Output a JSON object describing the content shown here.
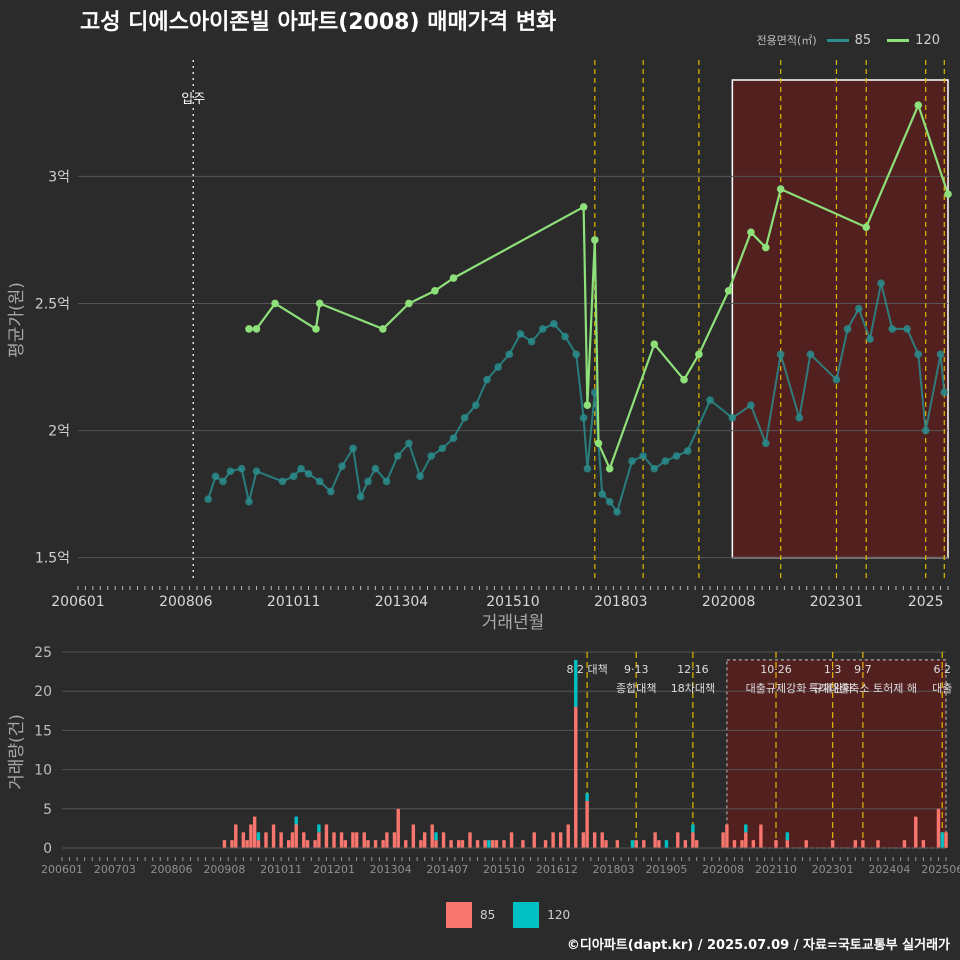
{
  "title": "고성 디에스아이존빌 아파트(2008) 매매가격 변화",
  "caption": "©디아파트(dapt.kr) / 2025.07.09 / 자료=국토교통부 실거래가",
  "legend": {
    "title": "전용면적(㎡)",
    "items": [
      {
        "label": "85",
        "color": "#2a8c8c",
        "bar_color": "#00c0c4"
      },
      {
        "label": "120",
        "color": "#8ee07a",
        "bar_color": "#f8766d"
      }
    ]
  },
  "colors": {
    "background": "#2b2b2b",
    "grid": "#555555",
    "policy_line": "#e0b800",
    "highlight_fill": "#5a1e1e",
    "highlight_border": "#ffffff",
    "bar_85": "#00c0c4",
    "bar_120": "#f8766d"
  },
  "chart_data": [
    {
      "type": "line",
      "title": "고성 디에스아이존빌 아파트(2008) 매매가격 변화",
      "xlabel": "거래년월",
      "ylabel": "평균가(원)",
      "x_unit": "yyyymm",
      "xlim": [
        "2006-01",
        "2025-07"
      ],
      "ylim": [
        1.42,
        3.45
      ],
      "x_ticks": [
        "200601",
        "200806",
        "201011",
        "201304",
        "201510",
        "201803",
        "202008",
        "202301",
        "2025"
      ],
      "y_ticks": [
        {
          "value": 1.5,
          "label": "1.5억"
        },
        {
          "value": 2.0,
          "label": "2억"
        },
        {
          "value": 2.5,
          "label": "2.5억"
        },
        {
          "value": 3.0,
          "label": "3억"
        }
      ],
      "grid": true,
      "annotations": [
        {
          "x": "2008-08",
          "label": "입주",
          "style": "dotted"
        }
      ],
      "policy_lines": [
        "2017-08",
        "2018-09",
        "2019-12",
        "2021-10",
        "2023-01",
        "2023-09",
        "2025-01",
        "2025-06"
      ],
      "highlight_range": [
        "2020-09",
        "2025-07"
      ],
      "series": [
        {
          "name": "120",
          "points": [
            [
              "2009-11",
              2.4
            ],
            [
              "2010-01",
              2.4
            ],
            [
              "2010-06",
              2.5
            ],
            [
              "2011-05",
              2.4
            ],
            [
              "2011-06",
              2.5
            ],
            [
              "2012-11",
              2.4
            ],
            [
              "2013-06",
              2.5
            ],
            [
              "2014-01",
              2.55
            ],
            [
              "2014-06",
              2.6
            ],
            [
              "2017-05",
              2.88
            ],
            [
              "2017-06",
              2.1
            ],
            [
              "2017-08",
              2.75
            ],
            [
              "2017-09",
              1.95
            ],
            [
              "2017-12",
              1.85
            ],
            [
              "2018-12",
              2.34
            ],
            [
              "2019-08",
              2.2
            ],
            [
              "2019-12",
              2.3
            ],
            [
              "2020-08",
              2.55
            ],
            [
              "2021-02",
              2.78
            ],
            [
              "2021-06",
              2.72
            ],
            [
              "2021-10",
              2.95
            ],
            [
              "2023-09",
              2.8
            ],
            [
              "2024-11",
              3.28
            ],
            [
              "2025-07",
              2.93
            ]
          ]
        },
        {
          "name": "85",
          "points": [
            [
              "2008-12",
              1.73
            ],
            [
              "2009-02",
              1.82
            ],
            [
              "2009-04",
              1.8
            ],
            [
              "2009-06",
              1.84
            ],
            [
              "2009-09",
              1.85
            ],
            [
              "2009-11",
              1.72
            ],
            [
              "2010-01",
              1.84
            ],
            [
              "2010-08",
              1.8
            ],
            [
              "2010-11",
              1.82
            ],
            [
              "2011-01",
              1.85
            ],
            [
              "2011-03",
              1.83
            ],
            [
              "2011-06",
              1.8
            ],
            [
              "2011-09",
              1.76
            ],
            [
              "2011-12",
              1.86
            ],
            [
              "2012-03",
              1.93
            ],
            [
              "2012-05",
              1.74
            ],
            [
              "2012-07",
              1.8
            ],
            [
              "2012-09",
              1.85
            ],
            [
              "2012-12",
              1.8
            ],
            [
              "2013-03",
              1.9
            ],
            [
              "2013-06",
              1.95
            ],
            [
              "2013-09",
              1.82
            ],
            [
              "2013-12",
              1.9
            ],
            [
              "2014-03",
              1.93
            ],
            [
              "2014-06",
              1.97
            ],
            [
              "2014-09",
              2.05
            ],
            [
              "2014-12",
              2.1
            ],
            [
              "2015-03",
              2.2
            ],
            [
              "2015-06",
              2.25
            ],
            [
              "2015-09",
              2.3
            ],
            [
              "2015-12",
              2.38
            ],
            [
              "2016-03",
              2.35
            ],
            [
              "2016-06",
              2.4
            ],
            [
              "2016-09",
              2.42
            ],
            [
              "2016-12",
              2.37
            ],
            [
              "2017-03",
              2.3
            ],
            [
              "2017-05",
              2.05
            ],
            [
              "2017-06",
              1.85
            ],
            [
              "2017-08",
              2.15
            ],
            [
              "2017-10",
              1.75
            ],
            [
              "2017-12",
              1.72
            ],
            [
              "2018-02",
              1.68
            ],
            [
              "2018-06",
              1.88
            ],
            [
              "2018-09",
              1.9
            ],
            [
              "2018-12",
              1.85
            ],
            [
              "2019-03",
              1.88
            ],
            [
              "2019-06",
              1.9
            ],
            [
              "2019-09",
              1.92
            ],
            [
              "2020-03",
              2.12
            ],
            [
              "2020-09",
              2.05
            ],
            [
              "2021-02",
              2.1
            ],
            [
              "2021-06",
              1.95
            ],
            [
              "2021-10",
              2.3
            ],
            [
              "2022-03",
              2.05
            ],
            [
              "2022-06",
              2.3
            ],
            [
              "2023-01",
              2.2
            ],
            [
              "2023-04",
              2.4
            ],
            [
              "2023-07",
              2.48
            ],
            [
              "2023-10",
              2.36
            ],
            [
              "2024-01",
              2.58
            ],
            [
              "2024-04",
              2.4
            ],
            [
              "2024-08",
              2.4
            ],
            [
              "2024-11",
              2.3
            ],
            [
              "2025-01",
              2.0
            ],
            [
              "2025-05",
              2.3
            ],
            [
              "2025-06",
              2.15
            ]
          ]
        }
      ]
    },
    {
      "type": "bar",
      "xlabel": "",
      "ylabel": "거래량(건)",
      "x_unit": "yyyymm",
      "xlim": [
        "2006-01",
        "2025-07"
      ],
      "ylim": [
        0,
        25
      ],
      "x_ticks": [
        "200601",
        "200703",
        "200806",
        "200908",
        "201011",
        "201201",
        "201304",
        "201407",
        "201510",
        "201612",
        "201803",
        "201905",
        "202008",
        "202110",
        "202301",
        "202404",
        "202506"
      ],
      "y_ticks": [
        0,
        5,
        10,
        15,
        20,
        25
      ],
      "grid": true,
      "stacked": true,
      "highlight_range": [
        "2020-09",
        "2025-07"
      ],
      "policies": [
        {
          "x": "2017-08",
          "date": "8·2 대책",
          "text": ""
        },
        {
          "x": "2018-09",
          "date": "9·13",
          "text": "종합대책"
        },
        {
          "x": "2019-12",
          "date": "12·16",
          "text": "18차대책"
        },
        {
          "x": "2021-10",
          "date": "10·26",
          "text": "대출규제강화"
        },
        {
          "x": "2023-01",
          "date": "1·3",
          "text": "규제완화"
        },
        {
          "x": "2023-09",
          "date": "9·7",
          "text": "특례대출축소 토허제 해"
        },
        {
          "x": "2025-06",
          "date": "6·2",
          "text": "대출"
        }
      ],
      "series": [
        {
          "name": "120",
          "points": [
            [
              "2009-08",
              1
            ],
            [
              "2009-10",
              1
            ],
            [
              "2009-11",
              3
            ],
            [
              "2010-01",
              2
            ],
            [
              "2010-02",
              1
            ],
            [
              "2010-03",
              3
            ],
            [
              "2010-04",
              4
            ],
            [
              "2010-05",
              1
            ],
            [
              "2010-07",
              2
            ],
            [
              "2010-09",
              3
            ],
            [
              "2010-11",
              2
            ],
            [
              "2011-01",
              1
            ],
            [
              "2011-02",
              2
            ],
            [
              "2011-03",
              3
            ],
            [
              "2011-05",
              2
            ],
            [
              "2011-06",
              1
            ],
            [
              "2011-08",
              1
            ],
            [
              "2011-09",
              2
            ],
            [
              "2011-11",
              3
            ],
            [
              "2012-01",
              2
            ],
            [
              "2012-03",
              2
            ],
            [
              "2012-04",
              1
            ],
            [
              "2012-06",
              2
            ],
            [
              "2012-07",
              2
            ],
            [
              "2012-09",
              2
            ],
            [
              "2012-10",
              1
            ],
            [
              "2012-12",
              1
            ],
            [
              "2013-02",
              1
            ],
            [
              "2013-03",
              2
            ],
            [
              "2013-05",
              2
            ],
            [
              "2013-06",
              5
            ],
            [
              "2013-08",
              1
            ],
            [
              "2013-10",
              3
            ],
            [
              "2013-12",
              1
            ],
            [
              "2014-01",
              2
            ],
            [
              "2014-03",
              3
            ],
            [
              "2014-04",
              1
            ],
            [
              "2014-06",
              2
            ],
            [
              "2014-08",
              1
            ],
            [
              "2014-10",
              1
            ],
            [
              "2014-11",
              1
            ],
            [
              "2015-01",
              2
            ],
            [
              "2015-03",
              1
            ],
            [
              "2015-05",
              1
            ],
            [
              "2015-07",
              1
            ],
            [
              "2015-08",
              1
            ],
            [
              "2015-10",
              1
            ],
            [
              "2015-12",
              2
            ],
            [
              "2016-03",
              1
            ],
            [
              "2016-06",
              2
            ],
            [
              "2016-09",
              1
            ],
            [
              "2016-11",
              2
            ],
            [
              "2017-01",
              2
            ],
            [
              "2017-03",
              3
            ],
            [
              "2017-05",
              18
            ],
            [
              "2017-07",
              2
            ],
            [
              "2017-08",
              6
            ],
            [
              "2017-10",
              2
            ],
            [
              "2017-12",
              2
            ],
            [
              "2018-01",
              1
            ],
            [
              "2018-04",
              1
            ],
            [
              "2018-09",
              1
            ],
            [
              "2018-11",
              1
            ],
            [
              "2019-02",
              2
            ],
            [
              "2019-03",
              1
            ],
            [
              "2019-08",
              2
            ],
            [
              "2019-10",
              1
            ],
            [
              "2019-12",
              2
            ],
            [
              "2020-01",
              1
            ],
            [
              "2020-08",
              2
            ],
            [
              "2020-09",
              3
            ],
            [
              "2020-11",
              1
            ],
            [
              "2021-01",
              1
            ],
            [
              "2021-02",
              2
            ],
            [
              "2021-04",
              1
            ],
            [
              "2021-06",
              3
            ],
            [
              "2021-10",
              1
            ],
            [
              "2022-01",
              1
            ],
            [
              "2022-06",
              1
            ],
            [
              "2023-01",
              1
            ],
            [
              "2023-07",
              1
            ],
            [
              "2023-09",
              1
            ],
            [
              "2024-01",
              1
            ],
            [
              "2024-08",
              1
            ],
            [
              "2024-11",
              4
            ],
            [
              "2025-01",
              1
            ],
            [
              "2025-05",
              5
            ],
            [
              "2025-07",
              2
            ]
          ]
        },
        {
          "name": "85",
          "points": [
            [
              "2010-05",
              1
            ],
            [
              "2011-03",
              1
            ],
            [
              "2011-09",
              1
            ],
            [
              "2014-04",
              1
            ],
            [
              "2015-06",
              1
            ],
            [
              "2017-05",
              6
            ],
            [
              "2017-08",
              1
            ],
            [
              "2018-08",
              1
            ],
            [
              "2019-05",
              1
            ],
            [
              "2019-12",
              1
            ],
            [
              "2021-02",
              1
            ],
            [
              "2022-01",
              1
            ],
            [
              "2025-06",
              2
            ]
          ]
        }
      ]
    }
  ]
}
